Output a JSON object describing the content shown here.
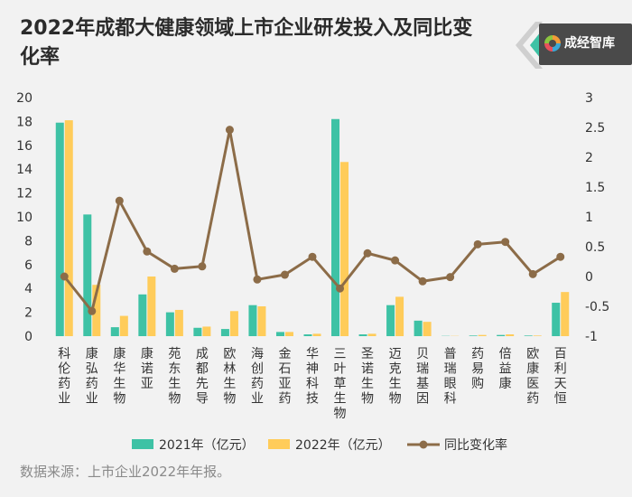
{
  "header": {
    "title": "2022年成都大健康领域上市企业研发投入及同比变化率",
    "logo_text": "成经智库"
  },
  "footer": {
    "source": "数据来源：上市企业2022年年报。"
  },
  "colors": {
    "bar2021": "#3ec2a5",
    "bar2022": "#ffcc5a",
    "line": "#8c6c48",
    "background": "#f2f2f2"
  },
  "chart_data": {
    "type": "bar",
    "categories": [
      "科伦药业",
      "康弘药业",
      "康华生物",
      "康诺亚",
      "苑东生物",
      "成都先导",
      "欧林生物",
      "海创药业",
      "金石亚药",
      "华神科技",
      "三叶草生物",
      "圣诺生物",
      "迈克生物",
      "贝瑞基因",
      "普瑞眼科",
      "药易购",
      "倍益康",
      "欧康医药",
      "百利天恒"
    ],
    "series": [
      {
        "name": "2021年（亿元）",
        "type": "bar",
        "axis": "left",
        "values": [
          17.9,
          10.2,
          0.75,
          3.5,
          2.0,
          0.7,
          0.6,
          2.6,
          0.35,
          0.15,
          18.2,
          0.15,
          2.6,
          1.3,
          0.02,
          0.05,
          0.1,
          0.05,
          2.8
        ]
      },
      {
        "name": "2022年（亿元）",
        "type": "bar",
        "axis": "left",
        "values": [
          18.1,
          4.3,
          1.7,
          5.0,
          2.2,
          0.8,
          2.1,
          2.5,
          0.35,
          0.2,
          14.6,
          0.2,
          3.3,
          1.2,
          0.02,
          0.1,
          0.15,
          0.05,
          3.7
        ]
      },
      {
        "name": "同比变化率",
        "type": "line",
        "axis": "right",
        "values": [
          0.0,
          -0.58,
          1.27,
          0.42,
          0.13,
          0.17,
          2.46,
          -0.05,
          0.03,
          0.33,
          -0.2,
          0.39,
          0.27,
          -0.08,
          -0.01,
          0.54,
          0.58,
          0.04,
          0.33
        ]
      }
    ],
    "y_left": {
      "ylim": [
        0,
        20
      ],
      "ticks": [
        "0",
        "2",
        "4",
        "6",
        "8",
        "10",
        "12",
        "14",
        "16",
        "18",
        "20"
      ]
    },
    "y_right": {
      "ylim": [
        -1,
        3
      ],
      "ticks": [
        "-1",
        "-0.5",
        "0",
        "0.5",
        "1",
        "1.5",
        "2",
        "2.5",
        "3"
      ]
    },
    "grid": false,
    "legend_position": "bottom"
  }
}
